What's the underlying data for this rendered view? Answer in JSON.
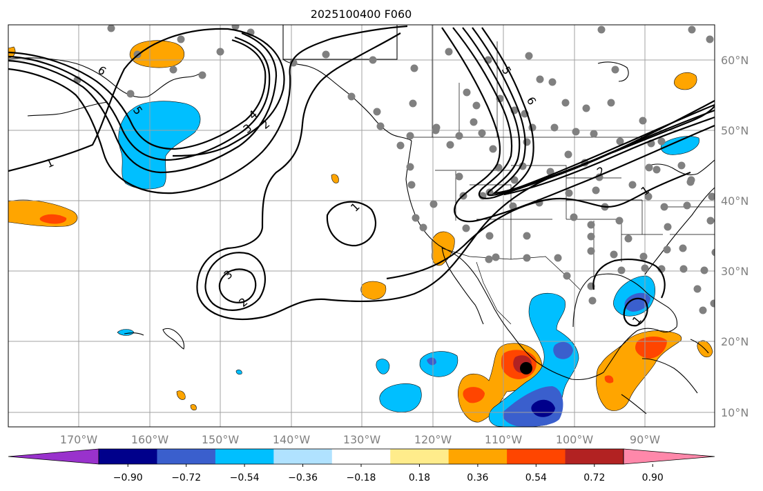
{
  "title": "2025100400 F060",
  "lon_labels": [
    "170°W",
    "160°W",
    "150°W",
    "140°W",
    "130°W",
    "120°W",
    "110°W",
    "100°W",
    "90°W"
  ],
  "lat_labels": [
    "60°N",
    "50°N",
    "40°N",
    "30°N",
    "20°N",
    "10°N"
  ],
  "contour_labels": [
    "6",
    "5",
    "4",
    "3",
    "2",
    "1",
    "1",
    "3",
    "2",
    "1",
    "6",
    "5",
    "2",
    "1",
    "1"
  ],
  "colorbar": {
    "ticks": [
      "−0.90",
      "−0.72",
      "−0.54",
      "−0.36",
      "−0.18",
      "0.18",
      "0.36",
      "0.54",
      "0.72",
      "0.90"
    ],
    "colors": [
      "#9932cc",
      "#00008b",
      "#3a5fcd",
      "#00bfff",
      "#b0e2ff",
      "#ffffff",
      "#ffec8b",
      "#ffa500",
      "#ff4500",
      "#b22222",
      "#ff88aa"
    ]
  },
  "colors": {
    "station_dot": "#808080",
    "grid": "#a0a0a0",
    "marker": "#000000"
  }
}
